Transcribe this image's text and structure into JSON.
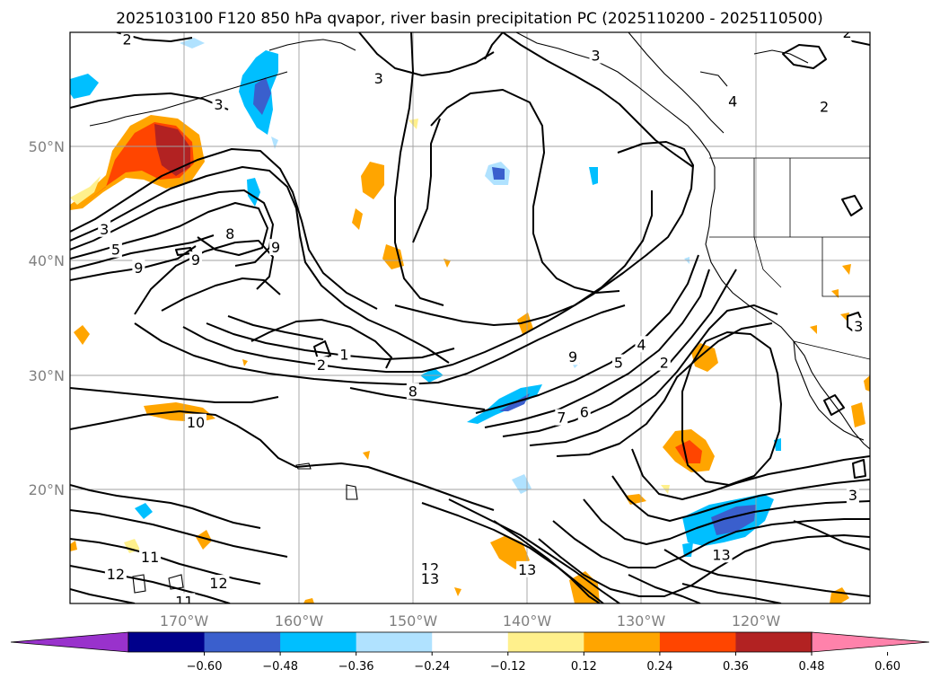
{
  "title": "2025103100 F120 850 hPa qvapor, river basin precipitation PC (2025110200 - 2025110500)",
  "map": {
    "lat_labels": [
      "50°N",
      "40°N",
      "30°N",
      "20°N"
    ],
    "lon_labels": [
      "170°W",
      "160°W",
      "150°W",
      "140°W",
      "130°W",
      "120°W"
    ],
    "lat_values": [
      50,
      40,
      30,
      20
    ],
    "lon_values": [
      -170,
      -160,
      -150,
      -140,
      -130,
      -120
    ],
    "extent": {
      "lon": [
        -180,
        -110
      ],
      "lat": [
        10,
        60
      ]
    },
    "contour_labels": [
      {
        "text": "2",
        "lon": -175,
        "lat": 59.4
      },
      {
        "text": "3",
        "lon": -153,
        "lat": 56
      },
      {
        "text": "3",
        "lon": -134,
        "lat": 58
      },
      {
        "text": "4",
        "lon": -122,
        "lat": 54
      },
      {
        "text": "2",
        "lon": -112,
        "lat": 60
      },
      {
        "text": "2",
        "lon": -114,
        "lat": 53.5
      },
      {
        "text": "3",
        "lon": -167,
        "lat": 53.7
      },
      {
        "text": "3",
        "lon": -177,
        "lat": 42.8
      },
      {
        "text": "5",
        "lon": -176,
        "lat": 41
      },
      {
        "text": "8",
        "lon": -166,
        "lat": 42.4
      },
      {
        "text": "9",
        "lon": -162,
        "lat": 41.2
      },
      {
        "text": "9",
        "lon": -169,
        "lat": 40.1
      },
      {
        "text": "9",
        "lon": -174,
        "lat": 39.4
      },
      {
        "text": "1",
        "lon": -156,
        "lat": 31.8
      },
      {
        "text": "2",
        "lon": -158,
        "lat": 30.9
      },
      {
        "text": "9",
        "lon": -136,
        "lat": 31.6
      },
      {
        "text": "8",
        "lon": -150,
        "lat": 28.6
      },
      {
        "text": "7",
        "lon": -137,
        "lat": 26.3
      },
      {
        "text": "6",
        "lon": -135,
        "lat": 26.8
      },
      {
        "text": "5",
        "lon": -132,
        "lat": 31.1
      },
      {
        "text": "4",
        "lon": -130,
        "lat": 32.7
      },
      {
        "text": "2",
        "lon": -128,
        "lat": 31.1
      },
      {
        "text": "3",
        "lon": -111,
        "lat": 34.3
      },
      {
        "text": "3",
        "lon": -111.5,
        "lat": 19.5
      },
      {
        "text": "10",
        "lon": -169,
        "lat": 25.9
      },
      {
        "text": "11",
        "lon": -173,
        "lat": 14.1
      },
      {
        "text": "12",
        "lon": -176,
        "lat": 12.6
      },
      {
        "text": "12",
        "lon": -167,
        "lat": 11.8
      },
      {
        "text": "11",
        "lon": -170,
        "lat": 10.2
      },
      {
        "text": "12",
        "lon": -148.5,
        "lat": 13.1
      },
      {
        "text": "13",
        "lon": -148.5,
        "lat": 12.2
      },
      {
        "text": "13",
        "lon": -140,
        "lat": 13
      },
      {
        "text": "13",
        "lon": -123,
        "lat": 14.3
      }
    ]
  },
  "colorbar": {
    "labels": [
      "−0.60",
      "−0.48",
      "−0.36",
      "−0.24",
      "−0.12",
      "0.12",
      "0.24",
      "0.36",
      "0.48",
      "0.60"
    ],
    "colors": [
      "#9932cc",
      "#00008b",
      "#3a5fcd",
      "#00bfff",
      "#b0e2ff",
      "#ffffff",
      "#fff08c",
      "#ffa500",
      "#ff4500",
      "#b22222",
      "#ff82ab"
    ]
  }
}
